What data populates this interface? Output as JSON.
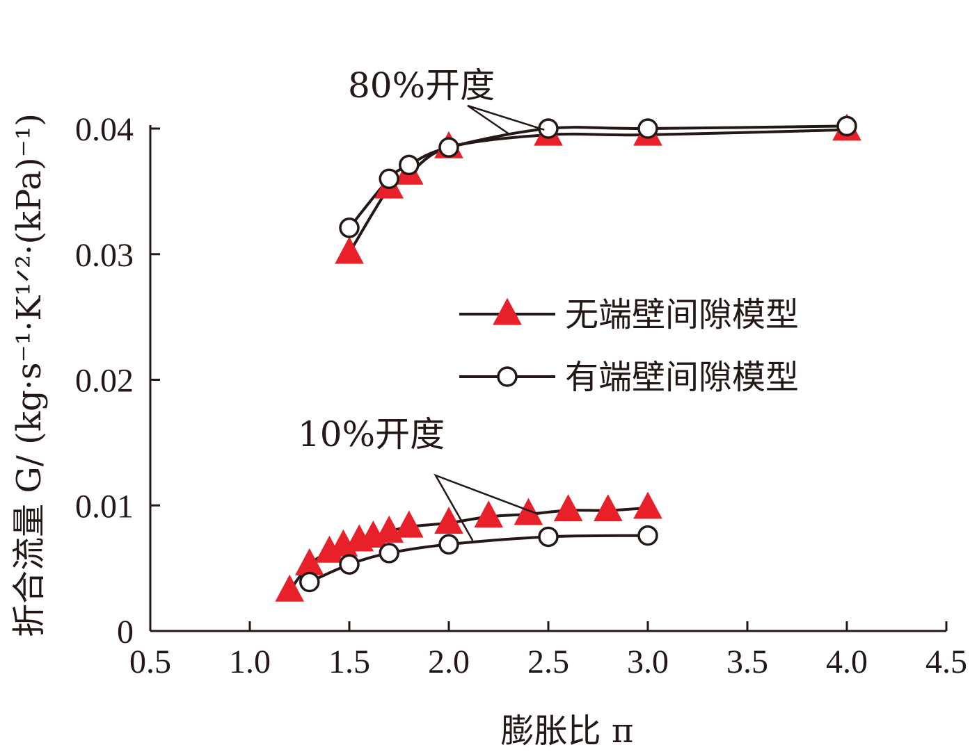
{
  "chart_data": {
    "type": "line",
    "title": "",
    "xlabel": "膨胀比 π",
    "ylabel": "折合流量 G/ (kg·s⁻¹·K¹ᐟ²·(kPa)⁻¹)",
    "xlim": [
      0.5,
      4.5
    ],
    "ylim": [
      0,
      0.04
    ],
    "xticks": [
      "0.5",
      "1.0",
      "1.5",
      "2.0",
      "2.5",
      "3.0",
      "3.5",
      "4.0",
      "4.5"
    ],
    "yticks": [
      "0",
      "0.01",
      "0.02",
      "0.03",
      "0.04"
    ],
    "grid": false,
    "legend_position": "center-right",
    "legend": [
      "无端壁间隙模型",
      "有端壁间隙模型"
    ],
    "annotations": [
      "80%开度",
      "10%开度"
    ],
    "colors": {
      "triangle_marker": "#e8202a",
      "line": "#231815",
      "axis": "#231815"
    },
    "series": [
      {
        "name": "无端壁间隙模型",
        "group": "80%开度",
        "marker": "triangle",
        "x": [
          1.5,
          1.7,
          1.8,
          2.0,
          2.5,
          3.0,
          4.0
        ],
        "y": [
          0.0301,
          0.0353,
          0.0364,
          0.0385,
          0.0395,
          0.0395,
          0.0399
        ]
      },
      {
        "name": "有端壁间隙模型",
        "group": "80%开度",
        "marker": "circle",
        "x": [
          1.5,
          1.7,
          1.8,
          2.0,
          2.5,
          3.0,
          4.0
        ],
        "y": [
          0.0321,
          0.036,
          0.0371,
          0.0385,
          0.04,
          0.04,
          0.0402
        ]
      },
      {
        "name": "无端壁间隙模型",
        "group": "10%开度",
        "marker": "triangle",
        "x": [
          1.2,
          1.3,
          1.4,
          1.47,
          1.55,
          1.62,
          1.7,
          1.8,
          2.0,
          2.2,
          2.4,
          2.6,
          2.8,
          3.0
        ],
        "y": [
          0.0032,
          0.0053,
          0.0063,
          0.0068,
          0.0072,
          0.0075,
          0.0079,
          0.0083,
          0.0086,
          0.0091,
          0.0093,
          0.0096,
          0.0096,
          0.0098
        ]
      },
      {
        "name": "有端壁间隙模型",
        "group": "10%开度",
        "marker": "circle",
        "x": [
          1.3,
          1.5,
          1.7,
          2.0,
          2.5,
          3.0
        ],
        "y": [
          0.0039,
          0.0053,
          0.0062,
          0.0069,
          0.0075,
          0.0076
        ]
      }
    ]
  }
}
